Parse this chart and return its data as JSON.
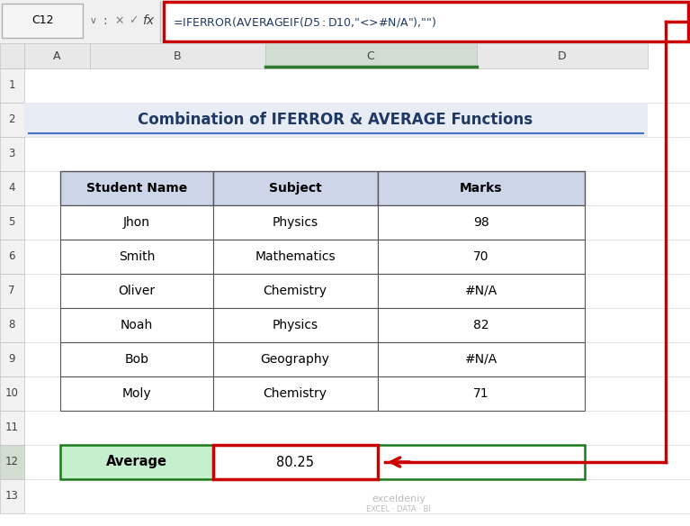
{
  "title": "Combination of IFERROR & AVERAGE Functions",
  "formula_bar_text": "=IFERROR(AVERAGEIF($D5:$D10,\"<>#N/A\"),\"\")",
  "cell_ref": "C12",
  "col_headers": [
    "A",
    "B",
    "C",
    "D"
  ],
  "table_headers": [
    "Student Name",
    "Subject",
    "Marks"
  ],
  "table_data": [
    [
      "Jhon",
      "Physics",
      "98"
    ],
    [
      "Smith",
      "Mathematics",
      "70"
    ],
    [
      "Oliver",
      "Chemistry",
      "#N/A"
    ],
    [
      "Noah",
      "Physics",
      "82"
    ],
    [
      "Bob",
      "Geography",
      "#N/A"
    ],
    [
      "Moly",
      "Chemistry",
      "71"
    ]
  ],
  "average_label": "Average",
  "average_value": "80.25",
  "header_bg": "#cdd5e8",
  "average_label_bg": "#c6efce",
  "average_value_border": "#CC0000",
  "formula_bar_border": "#CC0000",
  "bg_color": "#ffffff",
  "title_color": "#1f3864",
  "title_underline_color": "#4472c4",
  "col_header_bg": "#e8e8e8",
  "col_C_header_bg": "#d0ddd0",
  "row_num_bg": "#f2f2f2",
  "row_12_num_bg": "#d0ddd0",
  "formula_text_color": "#1f3864",
  "cell_ref_bg": "#f5f5f5",
  "avg_green_border": "#1a7a1a",
  "table_border": "#555555",
  "watermark_text1": "exceldeniy",
  "watermark_text2": "EXCEL · DATA · BI"
}
